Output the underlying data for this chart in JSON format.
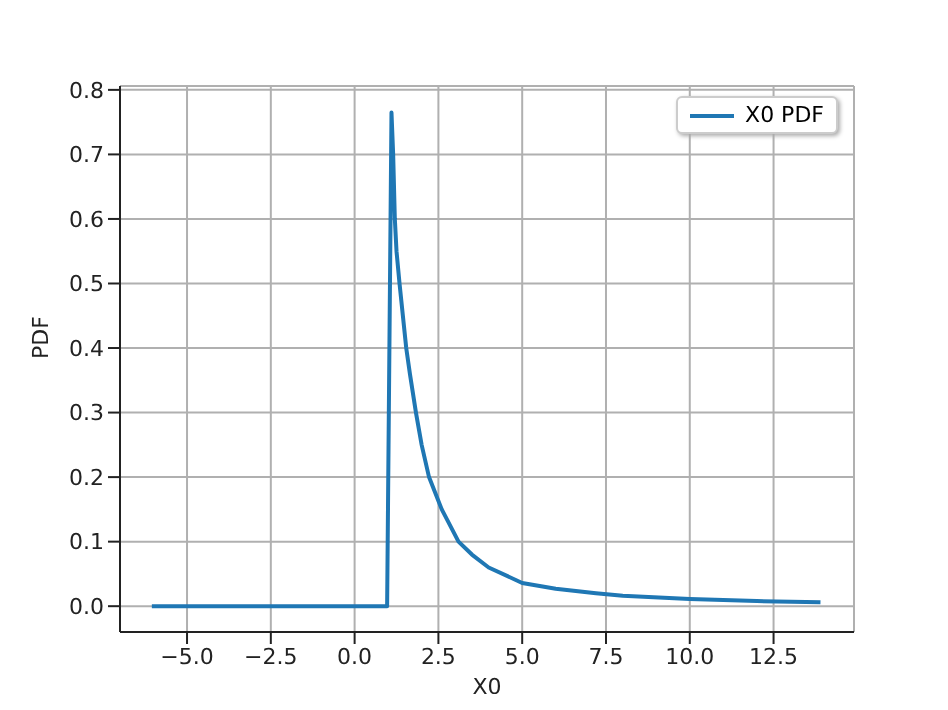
{
  "chart_data": {
    "type": "line",
    "xlabel": "X0",
    "ylabel": "PDF",
    "x": [
      -6.05,
      0.97,
      1.1,
      1.15,
      1.2,
      1.25,
      1.34,
      1.54,
      1.65,
      1.83,
      2.0,
      2.22,
      2.6,
      3.1,
      3.5,
      4.0,
      5.0,
      6.0,
      7.2,
      8.0,
      10.0,
      12.0,
      13.9
    ],
    "series": [
      {
        "name": "X0 PDF",
        "color": "#1f77b4",
        "values": [
          0,
          0,
          0.765,
          0.7,
          0.6,
          0.55,
          0.5,
          0.4,
          0.36,
          0.3,
          0.25,
          0.2,
          0.15,
          0.1,
          0.08,
          0.06,
          0.036,
          0.027,
          0.02,
          0.016,
          0.011,
          0.008,
          0.006
        ]
      }
    ],
    "xlim": [
      -7.0,
      14.9
    ],
    "ylim": [
      -0.04,
      0.806
    ],
    "xticks": [
      {
        "value": -5,
        "label": "−5.0"
      },
      {
        "value": -2.5,
        "label": "−2.5"
      },
      {
        "value": 0,
        "label": "0.0"
      },
      {
        "value": 2.5,
        "label": "2.5"
      },
      {
        "value": 5,
        "label": "5.0"
      },
      {
        "value": 7.5,
        "label": "7.5"
      },
      {
        "value": 10,
        "label": "10.0"
      },
      {
        "value": 12.5,
        "label": "12.5"
      }
    ],
    "yticks": [
      {
        "value": 0,
        "label": "0.0"
      },
      {
        "value": 0.1,
        "label": "0.1"
      },
      {
        "value": 0.2,
        "label": "0.2"
      },
      {
        "value": 0.3,
        "label": "0.3"
      },
      {
        "value": 0.4,
        "label": "0.4"
      },
      {
        "value": 0.5,
        "label": "0.5"
      },
      {
        "value": 0.6,
        "label": "0.6"
      },
      {
        "value": 0.7,
        "label": "0.7"
      },
      {
        "value": 0.8,
        "label": "0.8"
      }
    ],
    "grid": true,
    "legend": "top right",
    "marker": "none",
    "line_style": "solid"
  }
}
